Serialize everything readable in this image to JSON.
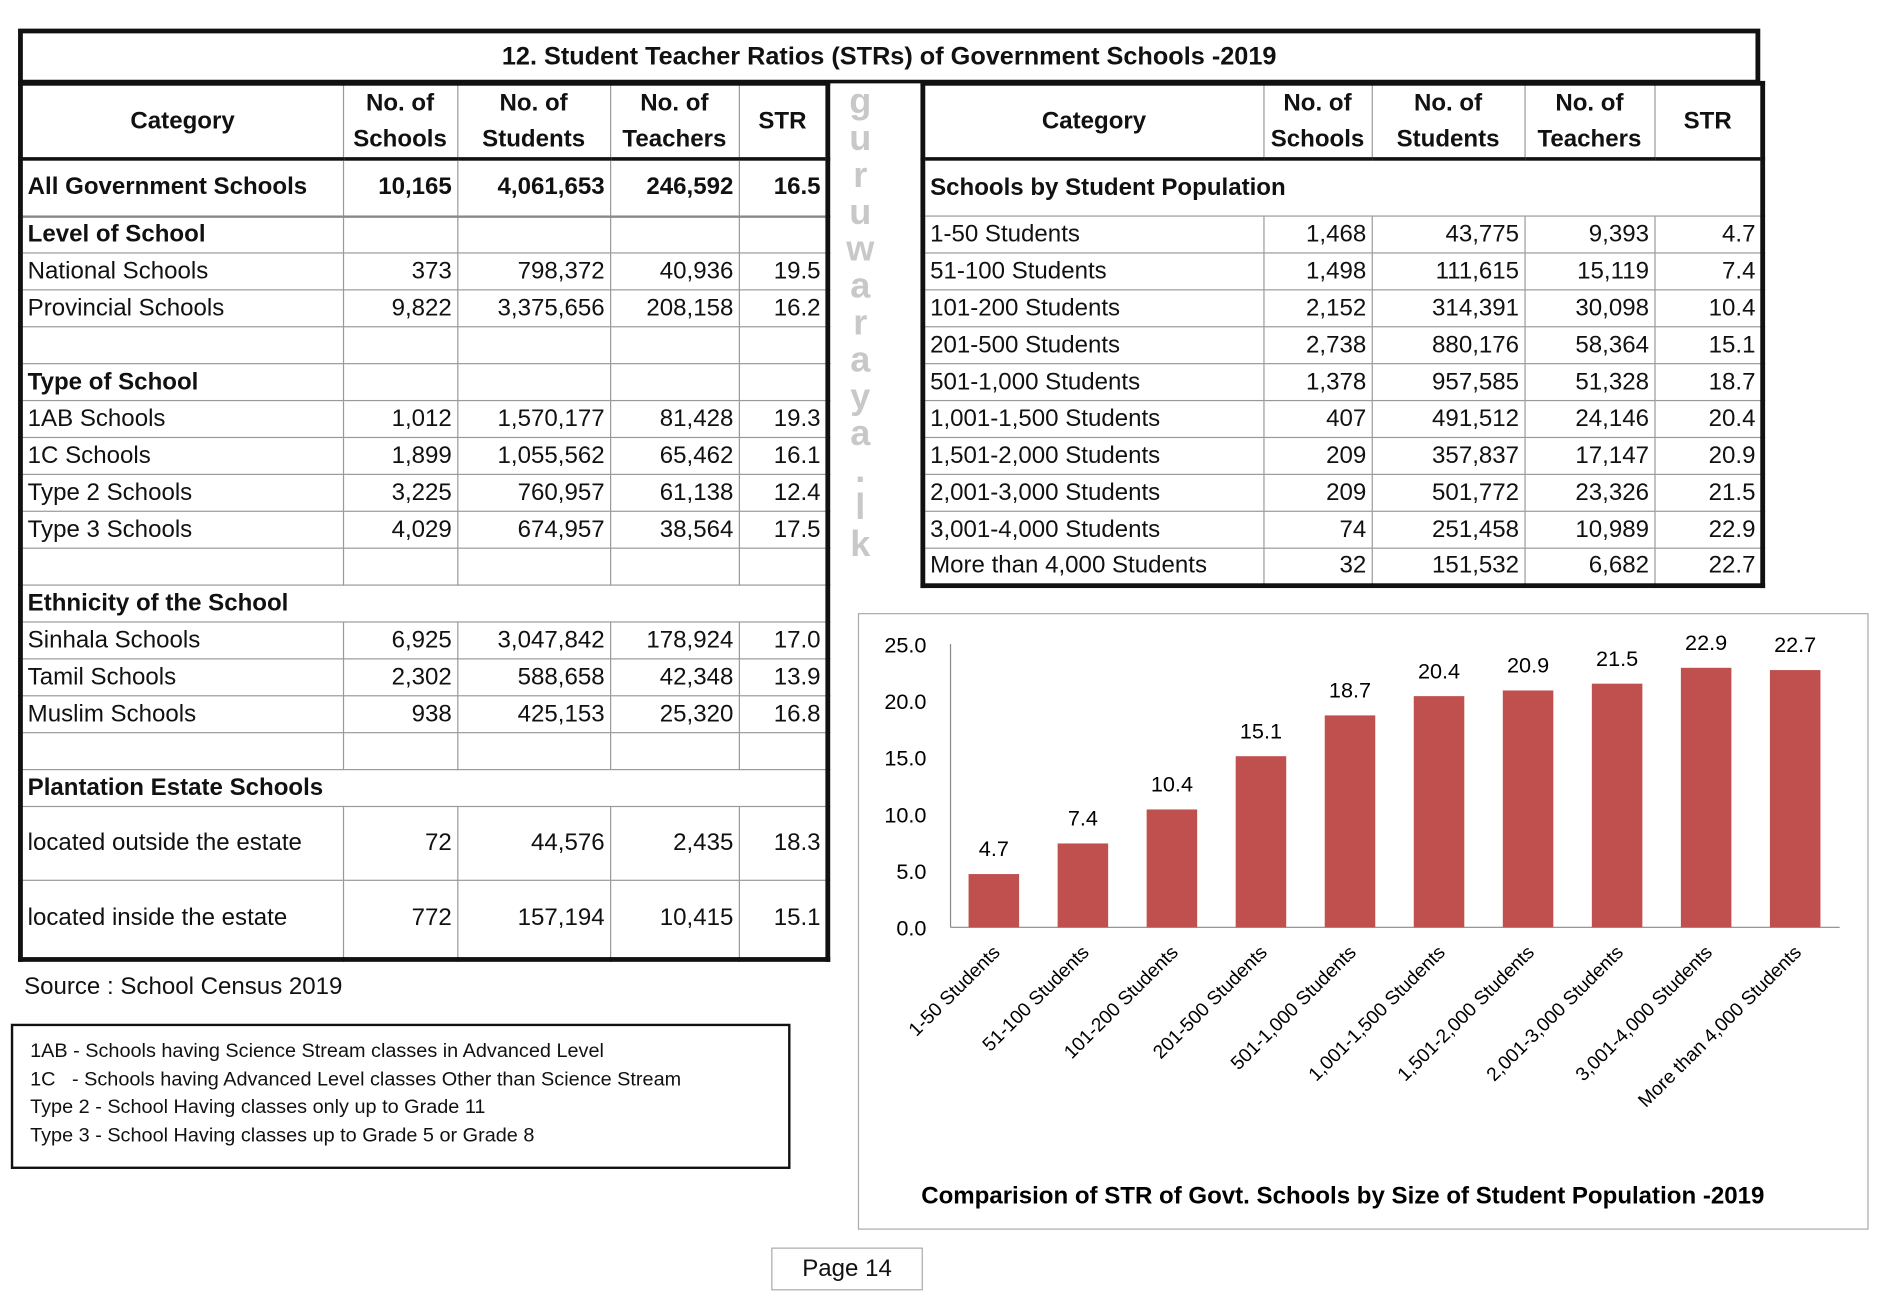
{
  "title": "12. Student Teacher Ratios (STRs) of Government Schools -2019",
  "left_table": {
    "headers": [
      "Category",
      "No. of Schools",
      "No. of Students",
      "No. of Teachers",
      "STR"
    ],
    "rows": [
      {
        "cells": [
          "All Government Schools",
          "10,165",
          "4,061,653",
          "246,592",
          "16.5"
        ],
        "bold": true
      },
      {
        "cells": [
          "Level of School",
          "",
          "",
          "",
          ""
        ],
        "bold": true
      },
      {
        "cells": [
          "National Schools",
          "373",
          "798,372",
          "40,936",
          "19.5"
        ]
      },
      {
        "cells": [
          "Provincial Schools",
          "9,822",
          "3,375,656",
          "208,158",
          "16.2"
        ]
      },
      {
        "cells": [
          "",
          "",
          "",
          "",
          ""
        ]
      },
      {
        "cells": [
          "Type of School",
          "",
          "",
          "",
          ""
        ],
        "bold": true
      },
      {
        "cells": [
          "1AB Schools",
          "1,012",
          "1,570,177",
          "81,428",
          "19.3"
        ]
      },
      {
        "cells": [
          "1C Schools",
          "1,899",
          "1,055,562",
          "65,462",
          "16.1"
        ]
      },
      {
        "cells": [
          "Type 2 Schools",
          "3,225",
          "760,957",
          "61,138",
          "12.4"
        ]
      },
      {
        "cells": [
          "Type 3 Schools",
          "4,029",
          "674,957",
          "38,564",
          "17.5"
        ]
      },
      {
        "cells": [
          "",
          "",
          "",
          "",
          ""
        ]
      },
      {
        "cells": [
          "Ethnicity of the School",
          "",
          "",
          "",
          ""
        ],
        "bold": true,
        "span": true
      },
      {
        "cells": [
          "Sinhala Schools",
          "6,925",
          "3,047,842",
          "178,924",
          "17.0"
        ]
      },
      {
        "cells": [
          "Tamil Schools",
          "2,302",
          "588,658",
          "42,348",
          "13.9"
        ]
      },
      {
        "cells": [
          "Muslim Schools",
          "938",
          "425,153",
          "25,320",
          "16.8"
        ]
      },
      {
        "cells": [
          "",
          "",
          "",
          "",
          ""
        ]
      },
      {
        "cells": [
          "Plantation Estate Schools",
          "",
          "",
          "",
          ""
        ],
        "bold": true,
        "span": true
      },
      {
        "cells": [
          "located outside the estate",
          "72",
          "44,576",
          "2,435",
          "18.3"
        ],
        "tall": 62
      },
      {
        "cells": [
          "located inside the estate",
          "772",
          "157,194",
          "10,415",
          "15.1"
        ],
        "tall": 66
      }
    ]
  },
  "right_table": {
    "headers": [
      "Category",
      "No. of Schools",
      "No. of Students",
      "No. of Teachers",
      "STR"
    ],
    "section": "Schools by Student Population",
    "rows": [
      [
        "1-50 Students",
        "1,468",
        "43,775",
        "9,393",
        "4.7"
      ],
      [
        "51-100 Students",
        "1,498",
        "111,615",
        "15,119",
        "7.4"
      ],
      [
        "101-200 Students",
        "2,152",
        "314,391",
        "30,098",
        "10.4"
      ],
      [
        "201-500 Students",
        "2,738",
        "880,176",
        "58,364",
        "15.1"
      ],
      [
        "501-1,000 Students",
        "1,378",
        "957,585",
        "51,328",
        "18.7"
      ],
      [
        "1,001-1,500 Students",
        "407",
        "491,512",
        "24,146",
        "20.4"
      ],
      [
        "1,501-2,000 Students",
        "209",
        "357,837",
        "17,147",
        "20.9"
      ],
      [
        "2,001-3,000 Students",
        "209",
        "501,772",
        "23,326",
        "21.5"
      ],
      [
        "3,001-4,000 Students",
        "74",
        "251,458",
        "10,989",
        "22.9"
      ],
      [
        "More than 4,000 Students",
        "32",
        "151,532",
        "6,682",
        "22.7"
      ]
    ]
  },
  "watermark": "guruwaraya.lk",
  "source": "Source : School Census 2019",
  "notes": [
    "1AB - Schools having Science Stream classes in Advanced Level",
    "1C   - Schools having Advanced Level classes Other than Science Stream",
    "Type 2 - School Having classes only up to Grade 11",
    "Type 3 - School Having classes up to Grade 5 or Grade 8"
  ],
  "chart_data": {
    "type": "bar",
    "title": "Comparision of STR of Govt. Schools by Size of Student Population -2019",
    "categories": [
      "1-50 Students",
      "51-100 Students",
      "101-200 Students",
      "201-500 Students",
      "501-1,000 Students",
      "1,001-1,500 Students",
      "1,501-2,000 Students",
      "2,001-3,000 Students",
      "3,001-4,000 Students",
      "More than 4,000 Students"
    ],
    "values": [
      4.7,
      7.4,
      10.4,
      15.1,
      18.7,
      20.4,
      20.9,
      21.5,
      22.9,
      22.7
    ],
    "data_labels": [
      "4.7",
      "7.4",
      "10.4",
      "15.1",
      "18.7",
      "20.4",
      "20.9",
      "21.5",
      "22.9",
      "22.7"
    ],
    "yticks": [
      "0.0",
      "5.0",
      "10.0",
      "15.0",
      "20.0",
      "25.0"
    ],
    "ylim": [
      0,
      25
    ],
    "grid": false,
    "legend": "none",
    "bar_color": "#c0504d"
  },
  "page": "Page 14"
}
